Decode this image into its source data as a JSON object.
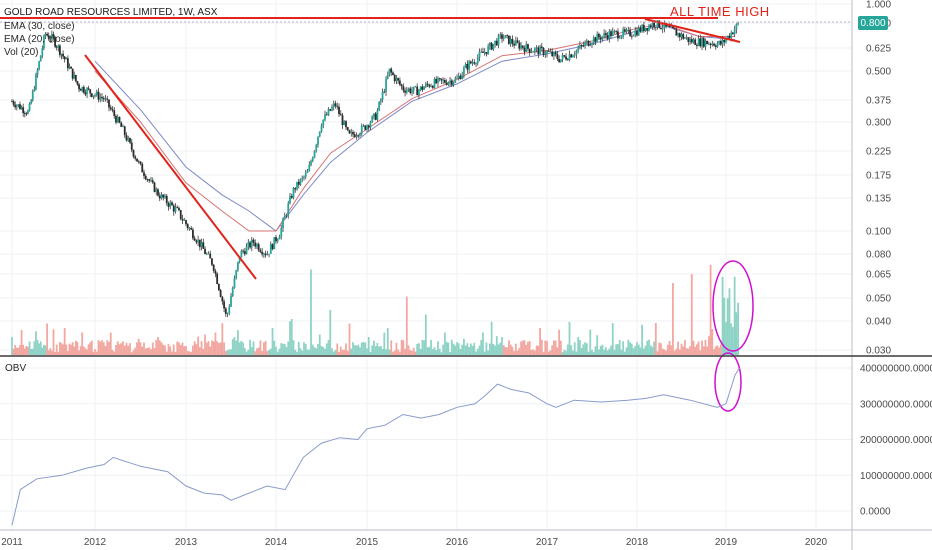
{
  "header": {
    "title": "GOLD ROAD RESOURCES LIMITED, 1W, ASX",
    "legend": [
      "EMA (30, close)",
      "EMA (20, close)",
      "Vol (20)"
    ]
  },
  "annotation": {
    "text": "ALL TIME HIGH",
    "color": "#e0241b"
  },
  "price_badge": {
    "text": "0.800",
    "color": "#26a69a"
  },
  "obv_panel": {
    "label": "OBV"
  },
  "chart_data": [
    {
      "type": "line",
      "title": "GOLD ROAD RESOURCES LIMITED, 1W, ASX",
      "scale": "log",
      "x_ticks": [
        "2011",
        "2012",
        "2013",
        "2014",
        "2015",
        "2016",
        "2017",
        "2018",
        "2019",
        "2020"
      ],
      "y_ticks": [
        "1.000",
        "0.800",
        "0.625",
        "0.500",
        "0.375",
        "0.300",
        "0.225",
        "0.175",
        "0.135",
        "0.100",
        "0.080",
        "0.065",
        "0.050",
        "0.040",
        "0.030"
      ],
      "ylim": [
        0.03,
        1.0
      ],
      "series": [
        {
          "name": "Price",
          "x": [
            2011.0,
            2011.2,
            2011.4,
            2011.5,
            2011.65,
            2011.8,
            2012.1,
            2012.3,
            2012.5,
            2012.7,
            2012.9,
            2013.1,
            2013.3,
            2013.45,
            2013.6,
            2013.75,
            2013.9,
            2014.05,
            2014.2,
            2014.35,
            2014.5,
            2014.65,
            2014.8,
            2014.95,
            2015.1,
            2015.25,
            2015.4,
            2015.55,
            2015.7,
            2015.85,
            2016.0,
            2016.1,
            2016.3,
            2016.5,
            2016.65,
            2016.8,
            2017.0,
            2017.15,
            2017.3,
            2017.5,
            2017.7,
            2017.9,
            2018.0,
            2018.2,
            2018.4,
            2018.6,
            2018.8,
            2018.95,
            2019.05,
            2019.15
          ],
          "values": [
            0.37,
            0.33,
            0.72,
            0.68,
            0.55,
            0.43,
            0.38,
            0.28,
            0.19,
            0.14,
            0.12,
            0.095,
            0.072,
            0.041,
            0.08,
            0.09,
            0.08,
            0.1,
            0.15,
            0.18,
            0.3,
            0.36,
            0.26,
            0.28,
            0.32,
            0.5,
            0.42,
            0.41,
            0.44,
            0.45,
            0.46,
            0.52,
            0.6,
            0.7,
            0.65,
            0.62,
            0.6,
            0.56,
            0.6,
            0.68,
            0.72,
            0.72,
            0.74,
            0.8,
            0.74,
            0.67,
            0.66,
            0.65,
            0.72,
            0.8
          ]
        },
        {
          "name": "EMA (30)",
          "x": [
            2012.0,
            2012.5,
            2013.0,
            2013.4,
            2013.7,
            2014.0,
            2014.3,
            2014.6,
            2015.0,
            2015.5,
            2016.0,
            2016.5,
            2017.0,
            2017.5,
            2018.0,
            2018.3,
            2018.7,
            2019.1
          ],
          "values": [
            0.55,
            0.34,
            0.19,
            0.14,
            0.12,
            0.1,
            0.14,
            0.2,
            0.27,
            0.37,
            0.44,
            0.55,
            0.59,
            0.65,
            0.74,
            0.78,
            0.7,
            0.68
          ]
        },
        {
          "name": "EMA (20)",
          "x": [
            2012.0,
            2012.5,
            2013.0,
            2013.4,
            2013.7,
            2014.0,
            2014.3,
            2014.6,
            2015.0,
            2015.5,
            2016.0,
            2016.5,
            2017.0,
            2017.5,
            2018.0,
            2018.3,
            2018.7,
            2019.1
          ],
          "values": [
            0.5,
            0.3,
            0.16,
            0.12,
            0.1,
            0.1,
            0.15,
            0.22,
            0.28,
            0.38,
            0.46,
            0.58,
            0.61,
            0.67,
            0.76,
            0.79,
            0.7,
            0.7
          ]
        }
      ]
    },
    {
      "type": "bar",
      "title": "Vol (20)",
      "x_range": [
        2011.0,
        2019.15
      ],
      "highlighted_period": [
        2018.95,
        2019.15
      ],
      "peak_values_relative": [
        0.2,
        0.15,
        0.35,
        0.3,
        0.25,
        0.15,
        0.12,
        0.18,
        0.2,
        0.15,
        0.12,
        0.25,
        0.2,
        0.15,
        0.3,
        0.4,
        0.95,
        0.5,
        0.35,
        0.2,
        0.3,
        0.65,
        0.45,
        0.25,
        0.18,
        0.25,
        0.2,
        0.15,
        0.3,
        0.28,
        0.2,
        0.22,
        0.12,
        0.1,
        0.15,
        0.8,
        0.9,
        1.0
      ]
    },
    {
      "type": "line",
      "title": "OBV",
      "y_ticks": [
        "400000000.0000",
        "300000000.0000",
        "200000000.0000",
        "100000000.0000",
        "0.0000"
      ],
      "ylim": [
        -50000000,
        410000000
      ],
      "series": [
        {
          "name": "OBV",
          "x": [
            2011.0,
            2011.1,
            2011.3,
            2011.6,
            2011.9,
            2012.1,
            2012.2,
            2012.5,
            2012.8,
            2013.0,
            2013.2,
            2013.4,
            2013.5,
            2013.7,
            2013.9,
            2014.1,
            2014.3,
            2014.5,
            2014.7,
            2014.9,
            2015.0,
            2015.2,
            2015.4,
            2015.6,
            2015.8,
            2016.0,
            2016.2,
            2016.3,
            2016.45,
            2016.6,
            2016.8,
            2017.0,
            2017.1,
            2017.3,
            2017.6,
            2017.9,
            2018.1,
            2018.3,
            2018.6,
            2018.9,
            2019.0,
            2019.1,
            2019.15
          ],
          "values": [
            -40000000,
            60000000,
            90000000,
            100000000,
            120000000,
            130000000,
            150000000,
            125000000,
            110000000,
            70000000,
            50000000,
            45000000,
            30000000,
            50000000,
            70000000,
            60000000,
            150000000,
            190000000,
            205000000,
            200000000,
            230000000,
            240000000,
            270000000,
            260000000,
            270000000,
            290000000,
            300000000,
            320000000,
            355000000,
            340000000,
            330000000,
            300000000,
            290000000,
            310000000,
            305000000,
            310000000,
            315000000,
            325000000,
            310000000,
            290000000,
            300000000,
            380000000,
            400000000
          ]
        }
      ]
    }
  ]
}
